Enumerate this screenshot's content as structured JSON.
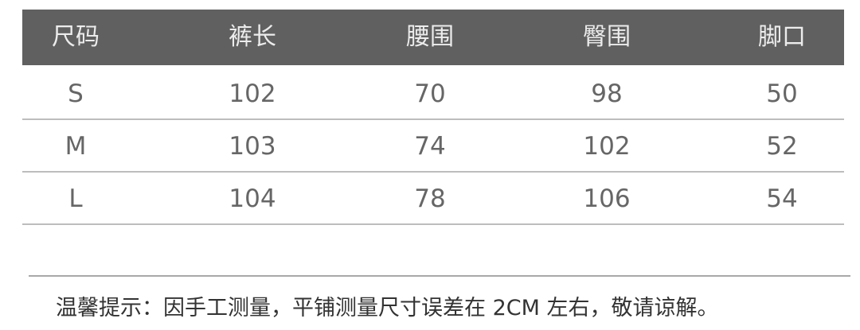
{
  "table": {
    "headers": [
      "尺码",
      "裤长",
      "腰围",
      "臀围",
      "脚口"
    ],
    "rows": [
      [
        "S",
        "102",
        "70",
        "98",
        "50"
      ],
      [
        "M",
        "103",
        "74",
        "102",
        "52"
      ],
      [
        "L",
        "104",
        "78",
        "106",
        "54"
      ]
    ],
    "header_bg": "#606060"
  },
  "note": "温馨提示：因手工测量，平铺测量尺寸误差在 2CM 左右，敬请谅解。"
}
